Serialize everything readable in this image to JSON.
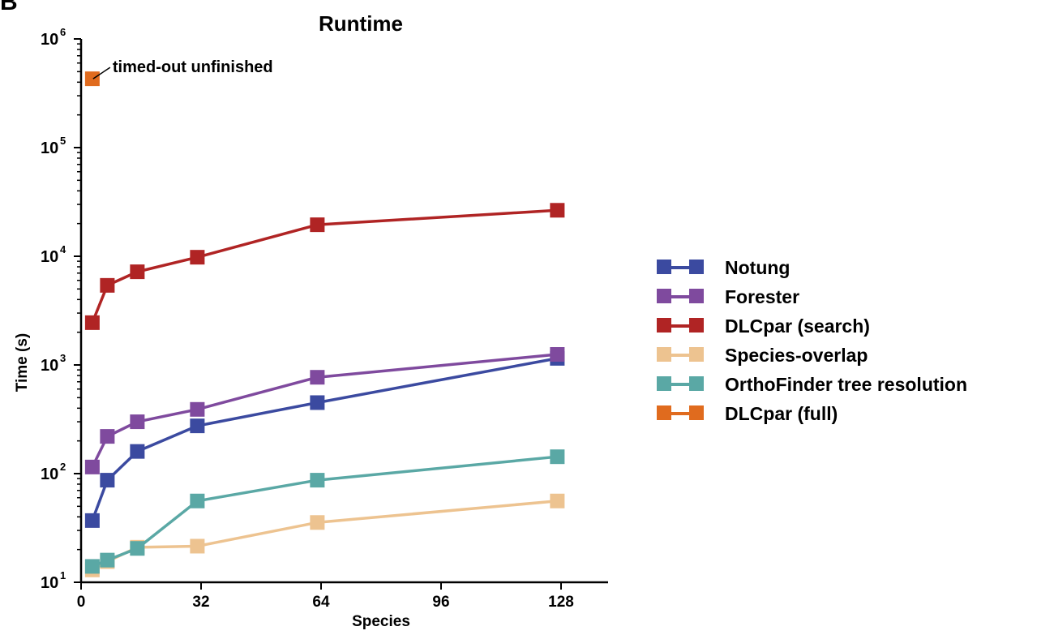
{
  "panel_label": "B",
  "chart_data": {
    "type": "line",
    "title": "Runtime",
    "xlabel": "Species",
    "ylabel": "Time (s)",
    "x_scale": "linear",
    "y_scale": "log",
    "xlim": [
      0,
      140
    ],
    "ylim": [
      10,
      1000000
    ],
    "x_ticks": [
      0,
      32,
      64,
      96,
      128
    ],
    "y_ticks": [
      {
        "value": 10,
        "base": "10",
        "exp": "1"
      },
      {
        "value": 100,
        "base": "10",
        "exp": "2"
      },
      {
        "value": 1000,
        "base": "10",
        "exp": "3"
      },
      {
        "value": 10000,
        "base": "10",
        "exp": "4"
      },
      {
        "value": 100000,
        "base": "10",
        "exp": "5"
      },
      {
        "value": 1000000,
        "base": "10",
        "exp": "6"
      }
    ],
    "grid": false,
    "legend_position": "right",
    "series": [
      {
        "name": "Notung",
        "color": "#3b4aa0",
        "x": [
          3,
          7,
          15,
          31,
          63,
          127
        ],
        "y": [
          37,
          87,
          160,
          275,
          450,
          1150
        ]
      },
      {
        "name": "Forester",
        "color": "#7f4a9e",
        "x": [
          3,
          7,
          15,
          31,
          63,
          127
        ],
        "y": [
          115,
          220,
          300,
          390,
          770,
          1250
        ]
      },
      {
        "name": "DLCpar (search)",
        "color": "#b02424",
        "x": [
          3,
          7,
          15,
          31,
          63,
          127
        ],
        "y": [
          2450,
          5400,
          7200,
          9800,
          19500,
          26500
        ]
      },
      {
        "name": "Species-overlap",
        "color": "#edc390",
        "x": [
          3,
          7,
          15,
          31,
          63,
          127
        ],
        "y": [
          13,
          15.5,
          21,
          21.5,
          35.5,
          56
        ]
      },
      {
        "name": "OrthoFinder tree resolution",
        "color": "#5aa8a5",
        "x": [
          3,
          7,
          15,
          31,
          63,
          127
        ],
        "y": [
          14,
          16,
          20.5,
          56,
          87,
          143
        ]
      },
      {
        "name": "DLCpar (full)",
        "color": "#e06b1e",
        "x": [
          3
        ],
        "y": [
          430000
        ]
      }
    ],
    "annotations": [
      {
        "text": "timed-out unfinished",
        "series": "DLCpar (full)",
        "x": 3,
        "y": 430000
      }
    ]
  }
}
